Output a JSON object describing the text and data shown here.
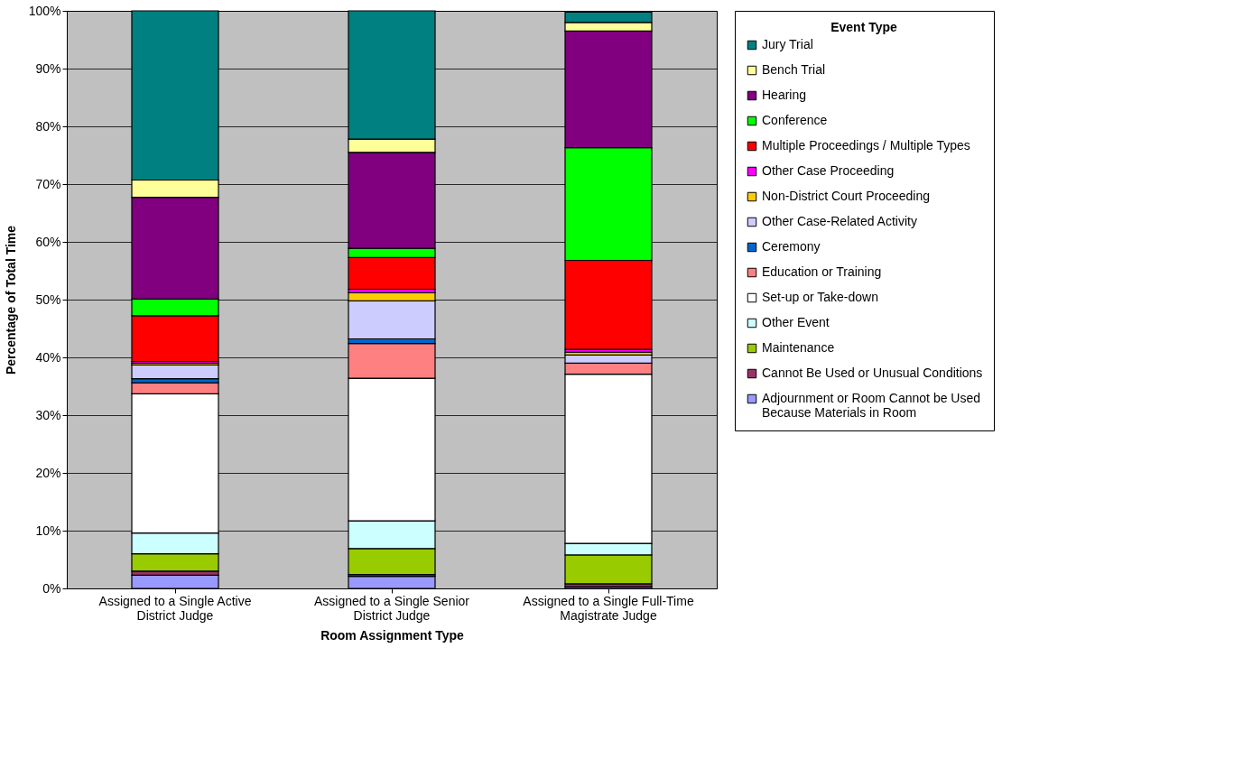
{
  "chart_data": {
    "type": "bar",
    "stacked": true,
    "xlabel": "Room Assignment Type",
    "ylabel": "Percentage of Total Time",
    "legend_title": "Event Type",
    "legend": "right",
    "grid": "y",
    "categories": [
      "Assigned to a Single Active District Judge",
      "Assigned to a Single Senior District Judge",
      "Assigned to a Single Full-Time Magistrate Judge"
    ],
    "ylim": [
      0,
      100
    ],
    "yticks": [
      {
        "value": 0,
        "label": "0%"
      },
      {
        "value": 10,
        "label": "10%"
      },
      {
        "value": 20,
        "label": "20%"
      },
      {
        "value": 30,
        "label": "30%"
      },
      {
        "value": 40,
        "label": "40%"
      },
      {
        "value": 50,
        "label": "50%"
      },
      {
        "value": 60,
        "label": "60%"
      },
      {
        "value": 70,
        "label": "70%"
      },
      {
        "value": 80,
        "label": "80%"
      },
      {
        "value": 90,
        "label": "90%"
      },
      {
        "value": 100,
        "label": "100%"
      }
    ],
    "series": [
      {
        "name": "Adjournment or Room Cannot be Used Because Materials in Room",
        "color": "#9999ff",
        "values": [
          2.3,
          2.1,
          0.3
        ]
      },
      {
        "name": "Cannot Be Used or Unusual Conditions",
        "color": "#993366",
        "values": [
          0.7,
          0.3,
          0.5
        ]
      },
      {
        "name": "Maintenance",
        "color": "#99cc00",
        "values": [
          3.0,
          4.5,
          5.0
        ]
      },
      {
        "name": "Other Event",
        "color": "#ccffff",
        "values": [
          3.6,
          4.8,
          2.0
        ]
      },
      {
        "name": "Set-up or Take-down",
        "color": "#ffffff",
        "values": [
          24.1,
          24.7,
          29.3
        ]
      },
      {
        "name": "Education or Training",
        "color": "#ff8080",
        "values": [
          1.9,
          6.0,
          1.9
        ]
      },
      {
        "name": "Ceremony",
        "color": "#0066cc",
        "values": [
          0.7,
          0.8,
          null
        ]
      },
      {
        "name": "Other Case-Related Activity",
        "color": "#ccccff",
        "values": [
          2.4,
          6.6,
          1.4
        ]
      },
      {
        "name": "Non-District Court Proceeding",
        "color": "#ffcc00",
        "values": [
          0.3,
          1.4,
          0.5
        ]
      },
      {
        "name": "Other Case Proceeding",
        "color": "#ff00ff",
        "values": [
          0.3,
          0.6,
          0.5
        ]
      },
      {
        "name": "Multiple Proceedings / Multiple Types",
        "color": "#ff0000",
        "values": [
          7.9,
          5.5,
          15.4
        ]
      },
      {
        "name": "Conference",
        "color": "#00ff00",
        "values": [
          2.9,
          1.6,
          19.5
        ]
      },
      {
        "name": "Hearing",
        "color": "#800080",
        "values": [
          17.6,
          16.6,
          20.2
        ]
      },
      {
        "name": "Bench Trial",
        "color": "#ffff99",
        "values": [
          3.0,
          2.3,
          1.5
        ]
      },
      {
        "name": "Jury Trial",
        "color": "#008080",
        "values": [
          29.3,
          22.2,
          1.8
        ]
      }
    ]
  }
}
